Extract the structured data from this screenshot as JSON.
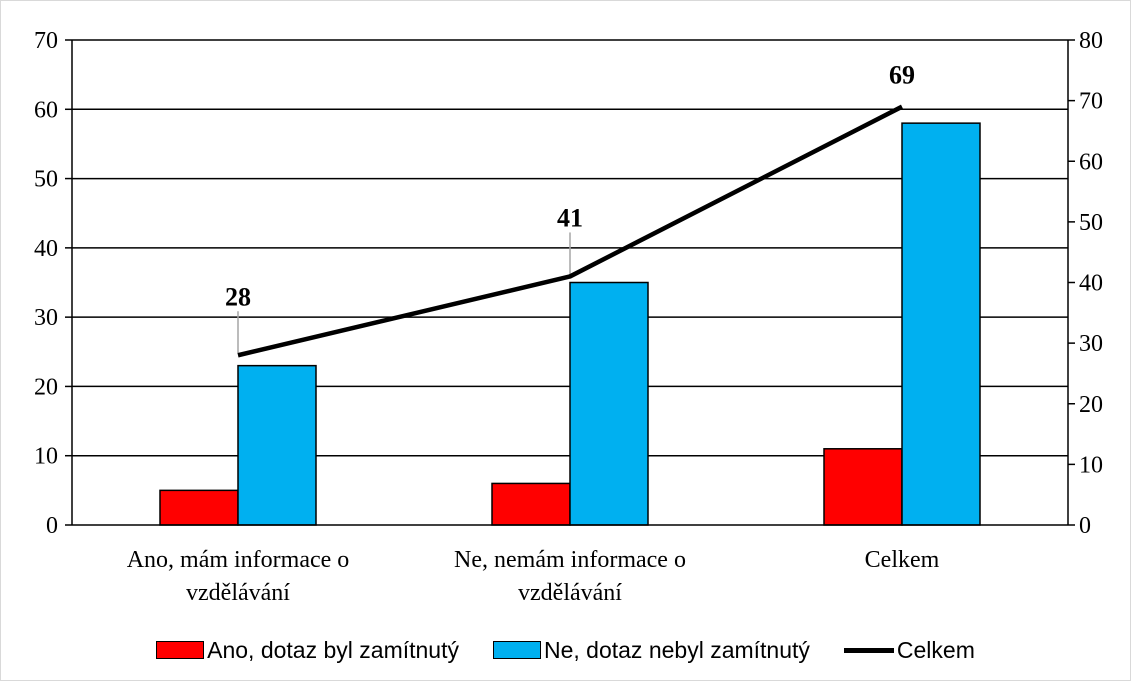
{
  "chart_data": {
    "type": "bar",
    "categories": [
      [
        "Ano, mám informace o",
        "vzdělávání"
      ],
      [
        "Ne, nemám informace o",
        "vzdělávání"
      ],
      [
        "Celkem"
      ]
    ],
    "series": [
      {
        "name": "Ano, dotaz byl zamítnutý",
        "type": "bar",
        "axis": "left",
        "values": [
          5,
          6,
          11
        ],
        "color": "#ff0000"
      },
      {
        "name": "Ne, dotaz nebyl zamítnutý",
        "type": "bar",
        "axis": "left",
        "values": [
          23,
          35,
          58
        ],
        "color": "#00b0f0"
      },
      {
        "name": "Celkem",
        "type": "line",
        "axis": "right",
        "values": [
          28,
          41,
          69
        ],
        "data_labels": [
          "28",
          "41",
          "69"
        ],
        "color": "#000000"
      }
    ],
    "y_left": {
      "min": 0,
      "max": 70,
      "ticks": [
        "0",
        "10",
        "20",
        "30",
        "40",
        "50",
        "60",
        "70"
      ]
    },
    "y_right": {
      "min": 0,
      "max": 80,
      "ticks": [
        "0",
        "10",
        "20",
        "30",
        "40",
        "50",
        "60",
        "70",
        "80"
      ]
    },
    "grid": true,
    "legend_position": "bottom"
  }
}
